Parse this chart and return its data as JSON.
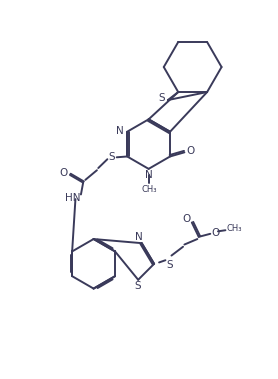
{
  "background": "#ffffff",
  "line_color": "#3a3a5a",
  "line_width": 1.4,
  "font_size": 7.5,
  "figsize": [
    2.78,
    3.79
  ],
  "dpi": 100,
  "xlim": [
    0,
    10
  ],
  "ylim": [
    0,
    13.6
  ]
}
